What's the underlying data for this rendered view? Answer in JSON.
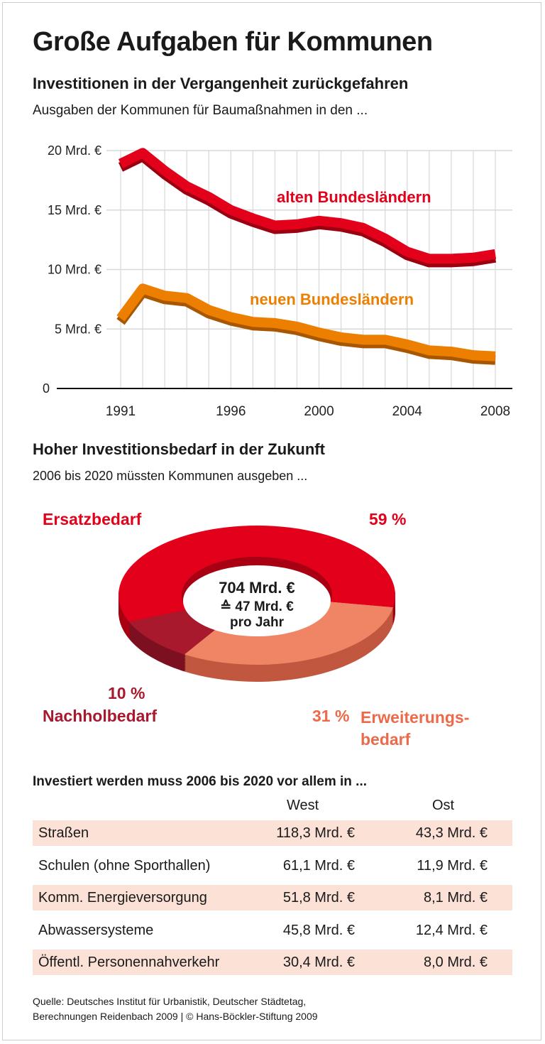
{
  "title": "Große Aufgaben für Kommunen",
  "section1": {
    "heading": "Investitionen in der Vergangenheit zurückgefahren",
    "subheading": "Ausgaben der Kommunen für Baumaßnahmen in den ..."
  },
  "chart_data": [
    {
      "type": "line",
      "x": [
        1991,
        1992,
        1993,
        1994,
        1995,
        1996,
        1997,
        1998,
        1999,
        2000,
        2001,
        2002,
        2003,
        2004,
        2005,
        2006,
        2007,
        2008
      ],
      "xticks": [
        "1991",
        "1996",
        "2000",
        "2004",
        "2008"
      ],
      "yticks": [
        "0",
        "5 Mrd. €",
        "10 Mrd. €",
        "15 Mrd. €",
        "20 Mrd. €"
      ],
      "ylim": [
        0,
        20
      ],
      "grid": true,
      "series": [
        {
          "name": "alten Bundesländern",
          "color": "#e3001b",
          "values": [
            18.9,
            19.8,
            18.3,
            17.0,
            16.1,
            15.0,
            14.3,
            13.7,
            13.8,
            14.1,
            13.9,
            13.5,
            12.6,
            11.5,
            10.9,
            10.9,
            11.0,
            11.3
          ]
        },
        {
          "name": "neuen Bundesländern",
          "color": "#ec7f00",
          "values": [
            5.9,
            8.4,
            7.8,
            7.6,
            6.6,
            6.0,
            5.6,
            5.5,
            5.2,
            4.7,
            4.3,
            4.1,
            4.1,
            3.7,
            3.2,
            3.1,
            2.8,
            2.7
          ]
        }
      ]
    },
    {
      "type": "pie",
      "title": "Hoher Investitionsbedarf in der Zukunft",
      "subtitle": "2006 bis 2020 müssten Kommunen ausgeben ...",
      "center_text": [
        "704 Mrd. €",
        "≙ 47 Mrd. €",
        "pro Jahr"
      ],
      "slices": [
        {
          "label": "Ersatzbedarf",
          "value": 59,
          "value_label": "59 %",
          "color": "#e3001b"
        },
        {
          "label": "Nachholbedarf",
          "value": 10,
          "value_label": "10 %",
          "color": "#a8192e"
        },
        {
          "label_lines": [
            "Erweiterungs-",
            "bedarf"
          ],
          "value": 31,
          "value_label": "31 %",
          "color": "#f08566"
        }
      ]
    },
    {
      "type": "table",
      "title": "Investiert werden muss 2006 bis 2020 vor allem in ...",
      "columns": [
        "",
        "West",
        "Ost"
      ],
      "rows": [
        [
          "Straßen",
          "118,3 Mrd. €",
          "43,3 Mrd. €"
        ],
        [
          "Schulen (ohne Sporthallen)",
          "61,1 Mrd. €",
          "11,9 Mrd. €"
        ],
        [
          "Komm. Energieversorgung",
          "51,8 Mrd. €",
          "8,1 Mrd. €"
        ],
        [
          "Abwassersysteme",
          "45,8 Mrd. €",
          "12,4 Mrd. €"
        ],
        [
          "Öffentl. Personennahverkehr",
          "30,4 Mrd. €",
          "8,0 Mrd. €"
        ]
      ],
      "row_shade_color": "#fbe1d6"
    }
  ],
  "source": [
    "Quelle: Deutsches Institut für Urbanistik, Deutscher Städtetag,",
    "Berechnungen Reidenbach 2009 | © Hans-Böckler-Stiftung 2009"
  ]
}
